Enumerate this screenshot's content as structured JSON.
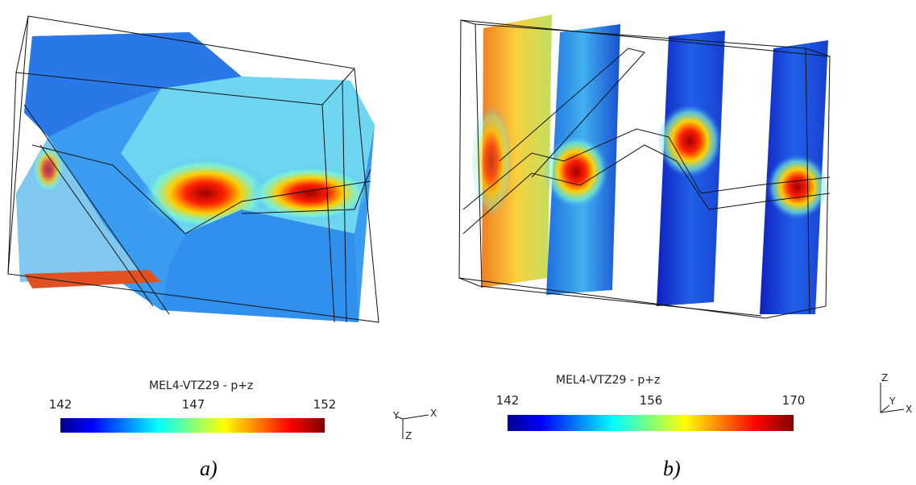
{
  "panels": [
    {
      "colorbar": {
        "title": "MEL4-VTZ29 - p+z",
        "ticks": [
          142,
          147,
          152
        ]
      },
      "axes": [
        "Y",
        "X",
        "Z"
      ],
      "caption": "a)"
    },
    {
      "colorbar": {
        "title": "MEL4-VTZ29 - p+z",
        "ticks": [
          142,
          156,
          170
        ]
      },
      "axes": [
        "Z",
        "Y",
        "X"
      ],
      "caption": "b)"
    }
  ]
}
